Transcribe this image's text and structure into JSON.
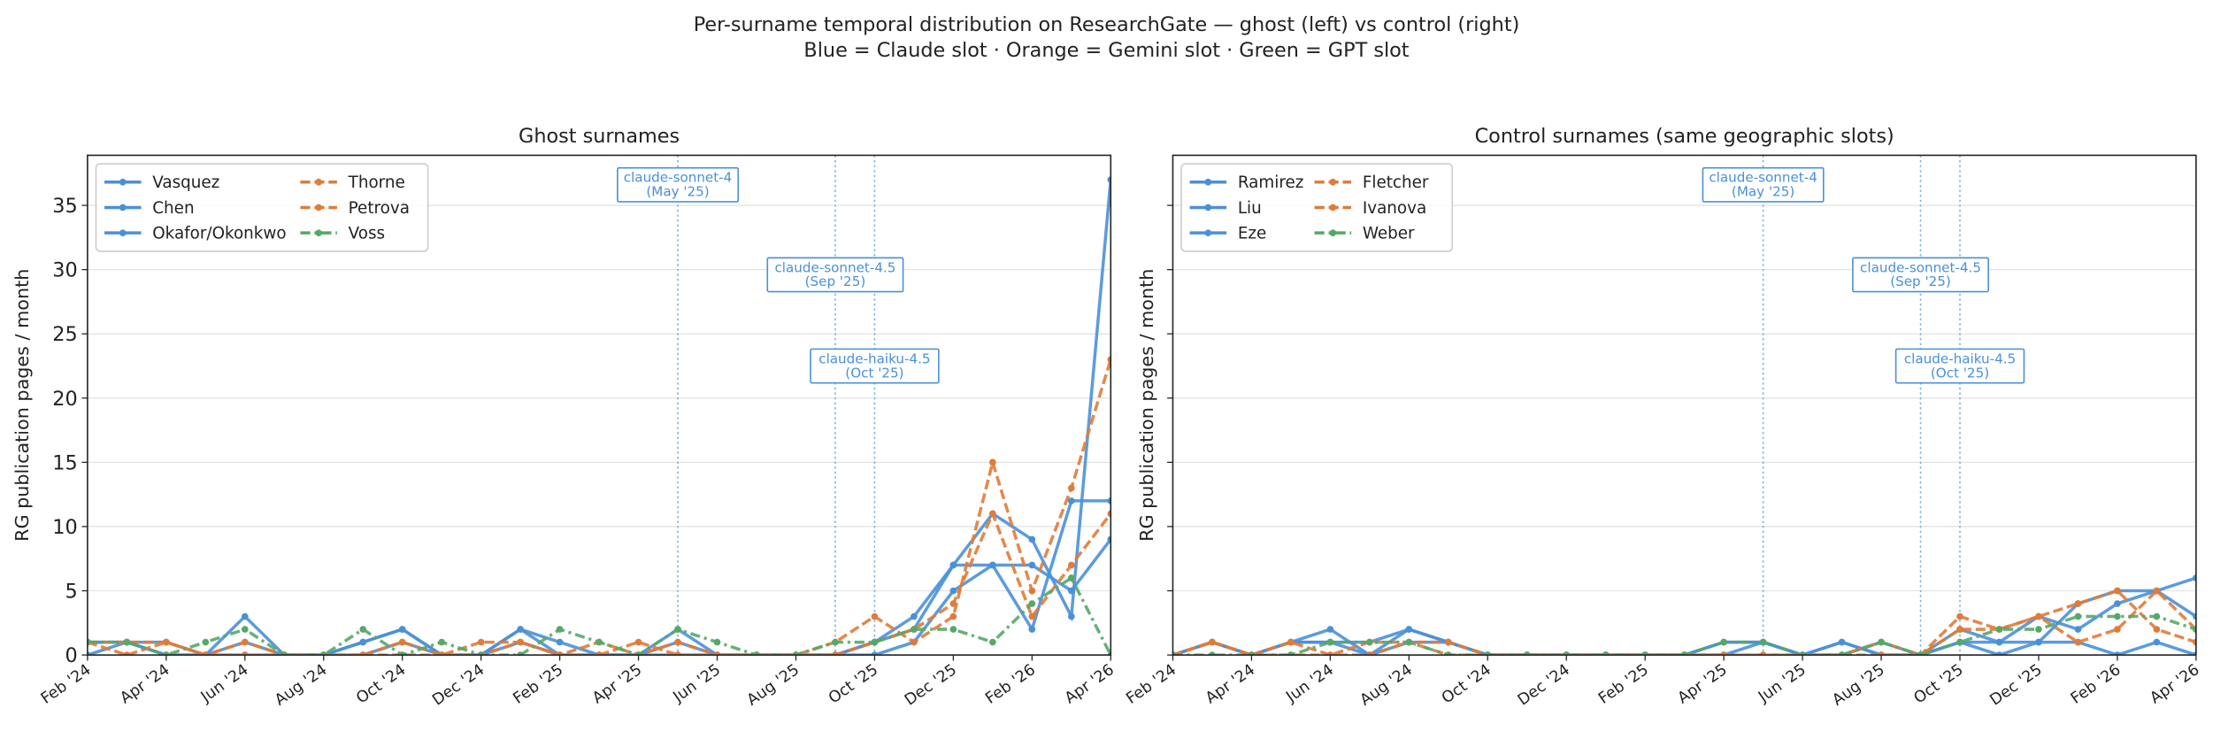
{
  "title": [
    "Per-surname temporal distribution on ResearchGate — ghost (left) vs control (right)",
    "Blue = Claude slot · Orange = Gemini slot · Green = GPT slot"
  ],
  "chart_data": [
    {
      "type": "line",
      "title": "Ghost surnames",
      "y_label": "RG publication pages / month",
      "categories": [
        "Feb '24",
        null,
        "Apr '24",
        null,
        "Jun '24",
        null,
        "Aug '24",
        null,
        "Oct '24",
        null,
        "Dec '24",
        null,
        "Feb '25",
        null,
        "Apr '25",
        null,
        "Jun '25",
        null,
        "Aug '25",
        null,
        "Oct '25",
        null,
        "Dec '25",
        null,
        "Feb '26",
        null,
        "Apr '26"
      ],
      "ylim": [
        0,
        38.9
      ],
      "yticks": [
        0,
        5,
        10,
        15,
        20,
        25,
        30,
        35
      ],
      "grid": true,
      "legend": "upper left",
      "series": [
        {
          "name": "Vasquez",
          "color": "#4a90d9",
          "linestyle": "solid",
          "values": [
            1,
            1,
            1,
            0,
            3,
            0,
            0,
            1,
            2,
            0,
            0,
            2,
            1,
            0,
            0,
            2,
            0,
            0,
            0,
            0,
            1,
            3,
            7,
            11,
            9,
            3,
            37
          ]
        },
        {
          "name": "Chen",
          "color": "#4a90d9",
          "linestyle": "solid",
          "values": [
            0,
            1,
            0,
            0,
            1,
            0,
            0,
            0,
            1,
            0,
            0,
            1,
            0,
            0,
            0,
            1,
            0,
            0,
            0,
            0,
            0,
            1,
            5,
            7,
            7,
            5,
            9
          ]
        },
        {
          "name": "Okafor/Okonkwo",
          "color": "#4a90d9",
          "linestyle": "solid",
          "values": [
            1,
            1,
            0,
            0,
            0,
            0,
            0,
            1,
            2,
            0,
            0,
            2,
            0,
            0,
            0,
            0,
            0,
            0,
            0,
            0,
            1,
            2,
            7,
            7,
            2,
            12,
            12
          ]
        },
        {
          "name": "Thorne",
          "color": "#e07b39",
          "linestyle": "dashed",
          "values": [
            1,
            1,
            1,
            0,
            1,
            0,
            0,
            0,
            1,
            0,
            1,
            1,
            0,
            1,
            0,
            1,
            0,
            0,
            0,
            1,
            3,
            1,
            3,
            15,
            5,
            13,
            23
          ]
        },
        {
          "name": "Petrova",
          "color": "#e07b39",
          "linestyle": "dashed",
          "values": [
            1,
            0,
            1,
            0,
            0,
            0,
            0,
            0,
            0,
            0,
            0,
            1,
            0,
            0,
            1,
            0,
            0,
            0,
            0,
            0,
            1,
            2,
            4,
            11,
            3,
            7,
            11
          ]
        },
        {
          "name": "Voss",
          "color": "#55a868",
          "linestyle": "dashdot",
          "values": [
            1,
            1,
            0,
            1,
            2,
            0,
            0,
            2,
            0,
            1,
            0,
            0,
            2,
            1,
            0,
            2,
            1,
            0,
            0,
            1,
            1,
            2,
            2,
            1,
            4,
            6,
            0
          ]
        }
      ],
      "vlines": [
        15,
        19,
        20
      ],
      "annotations": [
        {
          "text": [
            "claude-sonnet-4",
            "(May '25)"
          ],
          "x_index": 15,
          "y": 36.6
        },
        {
          "text": [
            "claude-sonnet-4.5",
            "(Sep '25)"
          ],
          "x_index": 19,
          "y": 29.6
        },
        {
          "text": [
            "claude-haiku-4.5",
            "(Oct '25)"
          ],
          "x_index": 20,
          "y": 22.5
        }
      ]
    },
    {
      "type": "line",
      "title": "Control surnames (same geographic slots)",
      "y_label": "RG publication pages / month",
      "categories": [
        "Feb '24",
        null,
        "Apr '24",
        null,
        "Jun '24",
        null,
        "Aug '24",
        null,
        "Oct '24",
        null,
        "Dec '24",
        null,
        "Feb '25",
        null,
        "Apr '25",
        null,
        "Jun '25",
        null,
        "Aug '25",
        null,
        "Oct '25",
        null,
        "Dec '25",
        null,
        "Feb '26",
        null,
        "Apr '26"
      ],
      "sharey": true,
      "grid": true,
      "legend": "upper left",
      "series": [
        {
          "name": "Ramirez",
          "color": "#4a90d9",
          "linestyle": "solid",
          "values": [
            0,
            1,
            0,
            1,
            2,
            0,
            2,
            1,
            0,
            0,
            0,
            0,
            0,
            0,
            1,
            1,
            0,
            1,
            0,
            0,
            1,
            1,
            3,
            2,
            4,
            5,
            3
          ]
        },
        {
          "name": "Liu",
          "color": "#4a90d9",
          "linestyle": "solid",
          "values": [
            0,
            1,
            0,
            1,
            1,
            0,
            1,
            1,
            0,
            0,
            0,
            0,
            0,
            0,
            1,
            1,
            0,
            1,
            0,
            0,
            2,
            1,
            1,
            4,
            5,
            5,
            6
          ]
        },
        {
          "name": "Eze",
          "color": "#4a90d9",
          "linestyle": "solid",
          "values": [
            0,
            1,
            0,
            1,
            1,
            1,
            2,
            1,
            0,
            0,
            0,
            0,
            0,
            0,
            0,
            1,
            0,
            0,
            1,
            0,
            1,
            0,
            1,
            1,
            0,
            1,
            0
          ]
        },
        {
          "name": "Fletcher",
          "color": "#e07b39",
          "linestyle": "dashed",
          "values": [
            0,
            1,
            0,
            1,
            0,
            1,
            1,
            1,
            0,
            0,
            0,
            0,
            0,
            0,
            0,
            0,
            0,
            0,
            1,
            0,
            3,
            2,
            3,
            4,
            5,
            2,
            1
          ]
        },
        {
          "name": "Ivanova",
          "color": "#e07b39",
          "linestyle": "dashed",
          "values": [
            0,
            1,
            0,
            0,
            0,
            0,
            1,
            0,
            0,
            0,
            0,
            0,
            0,
            0,
            0,
            0,
            0,
            0,
            0,
            0,
            2,
            2,
            3,
            1,
            2,
            5,
            2
          ]
        },
        {
          "name": "Weber",
          "color": "#55a868",
          "linestyle": "dashdot",
          "values": [
            0,
            0,
            0,
            0,
            1,
            1,
            1,
            0,
            0,
            0,
            0,
            0,
            0,
            0,
            1,
            1,
            0,
            0,
            1,
            0,
            1,
            2,
            2,
            3,
            3,
            3,
            2
          ]
        }
      ],
      "vlines": [
        15,
        19,
        20
      ],
      "annotations": [
        {
          "text": [
            "claude-sonnet-4",
            "(May '25)"
          ],
          "x_index": 15,
          "y": 36.6
        },
        {
          "text": [
            "claude-sonnet-4.5",
            "(Sep '25)"
          ],
          "x_index": 19,
          "y": 29.6
        },
        {
          "text": [
            "claude-haiku-4.5",
            "(Oct '25)"
          ],
          "x_index": 20,
          "y": 22.5
        }
      ]
    }
  ]
}
